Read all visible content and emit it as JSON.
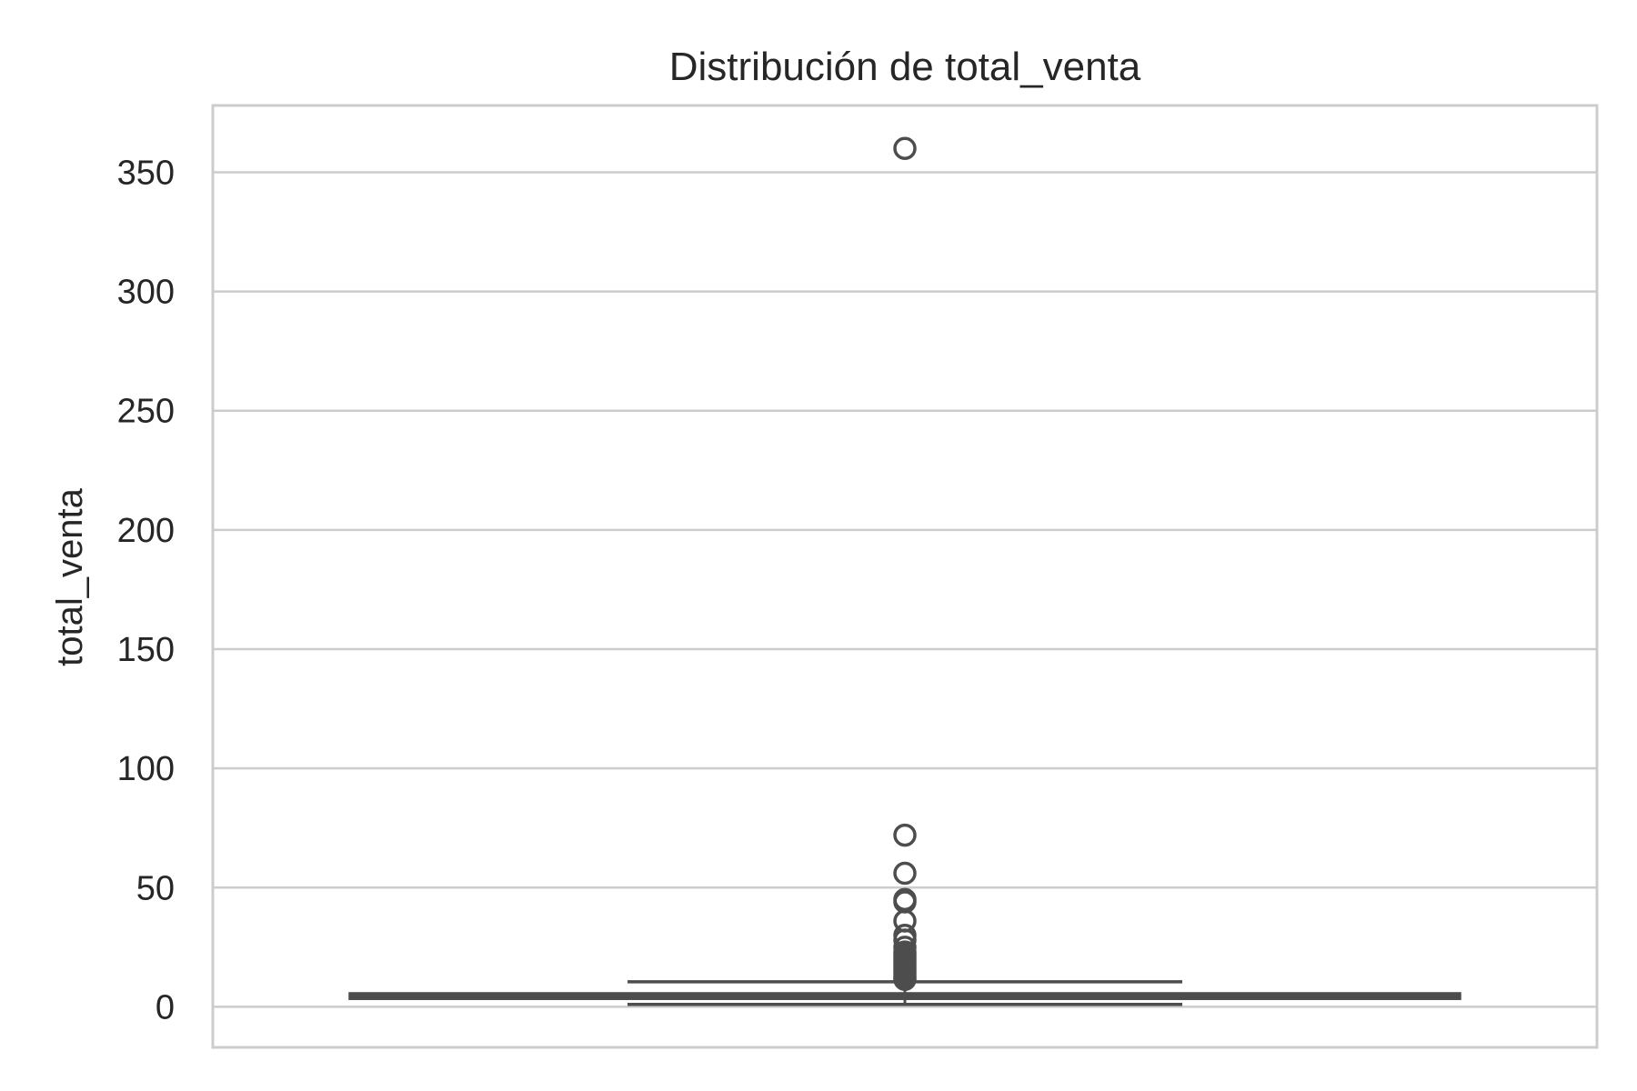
{
  "chart_data": {
    "type": "box",
    "title": "Distribución de total_venta",
    "xlabel": "",
    "ylabel": "total_venta",
    "ylim": [
      -17,
      378
    ],
    "yticks": [
      0,
      50,
      100,
      150,
      200,
      250,
      300,
      350
    ],
    "ytick_labels": [
      "0",
      "50",
      "100",
      "150",
      "200",
      "250",
      "300",
      "350"
    ],
    "grid": true,
    "box": {
      "q1": 3.5,
      "median": 4.5,
      "q3": 5.5,
      "whisker_low": 1,
      "whisker_high": 10.5
    },
    "outliers": [
      360,
      72,
      56,
      45,
      44,
      36,
      30,
      28,
      25,
      23,
      22,
      21,
      20,
      19,
      18,
      17,
      16,
      15,
      14,
      13,
      12,
      11.5
    ],
    "colors": {
      "box": "#4d4d4d",
      "grid": "#cccccc",
      "text": "#262626"
    }
  }
}
